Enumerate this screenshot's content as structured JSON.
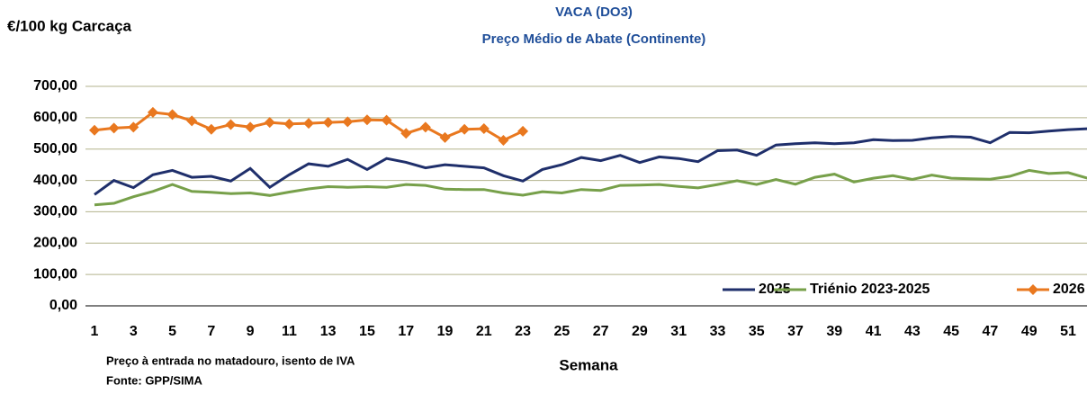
{
  "chart_data": {
    "type": "line",
    "title": "VACA (DO3)",
    "subtitle": "Preço Médio de Abate (Continente)",
    "y_label": "€/100 kg Carcaça",
    "x_label": "Semana",
    "notes": [
      "Preço à entrada no matadouro, isento de IVA",
      "Fonte: GPP/SIMA"
    ],
    "categories": [
      1,
      null,
      3,
      null,
      5,
      null,
      7,
      null,
      9,
      null,
      11,
      null,
      13,
      null,
      15,
      null,
      17,
      null,
      19,
      null,
      21,
      null,
      23,
      null,
      25,
      null,
      27,
      null,
      29,
      null,
      31,
      null,
      33,
      null,
      35,
      null,
      37,
      null,
      39,
      null,
      41,
      null,
      43,
      null,
      45,
      null,
      47,
      null,
      49,
      null,
      51,
      null
    ],
    "ylim": [
      0,
      700
    ],
    "yticks": [
      {
        "value": 0,
        "label": "0,00"
      },
      {
        "value": 100,
        "label": "100,00"
      },
      {
        "value": 200,
        "label": "200,00"
      },
      {
        "value": 300,
        "label": "300,00"
      },
      {
        "value": 400,
        "label": "400,00"
      },
      {
        "value": 500,
        "label": "500,00"
      },
      {
        "value": 600,
        "label": "600,00"
      },
      {
        "value": 700,
        "label": "700,00"
      }
    ],
    "grid": true,
    "legend": "lower right",
    "series": [
      {
        "name": "2025",
        "color": "#1f2f6b",
        "marker": false,
        "values": [
          355,
          400,
          377,
          418,
          432,
          410,
          413,
          398,
          438,
          378,
          418,
          453,
          445,
          467,
          435,
          470,
          458,
          440,
          450,
          445,
          440,
          415,
          398,
          435,
          450,
          473,
          463,
          480,
          457,
          475,
          470,
          460,
          495,
          497,
          480,
          513,
          517,
          520,
          517,
          520,
          530,
          527,
          528,
          536,
          540,
          538,
          520,
          553,
          552,
          557,
          562,
          565
        ]
      },
      {
        "name": "Triénio 2023-2025",
        "color": "#77a04a",
        "marker": false,
        "values": [
          322,
          327,
          348,
          365,
          387,
          365,
          362,
          358,
          360,
          352,
          363,
          373,
          380,
          378,
          380,
          378,
          387,
          384,
          372,
          371,
          371,
          360,
          353,
          364,
          360,
          371,
          368,
          384,
          385,
          387,
          381,
          376,
          387,
          399,
          387,
          403,
          388,
          410,
          420,
          395,
          407,
          415,
          403,
          417,
          407,
          405,
          404,
          413,
          432,
          422,
          425,
          407
        ]
      },
      {
        "name": "2026",
        "color": "#e9781f",
        "marker": true,
        "values": [
          560,
          567,
          570,
          617,
          610,
          590,
          563,
          578,
          570,
          585,
          580,
          582,
          585,
          587,
          593,
          592,
          550,
          570,
          537,
          563,
          565,
          528,
          557,
          null,
          null,
          null,
          null,
          null,
          null,
          null,
          null,
          null,
          null,
          null,
          null,
          null,
          null,
          null,
          null,
          null,
          null,
          null,
          null,
          null,
          null,
          null,
          null,
          null,
          null,
          null,
          null,
          null
        ]
      }
    ]
  }
}
